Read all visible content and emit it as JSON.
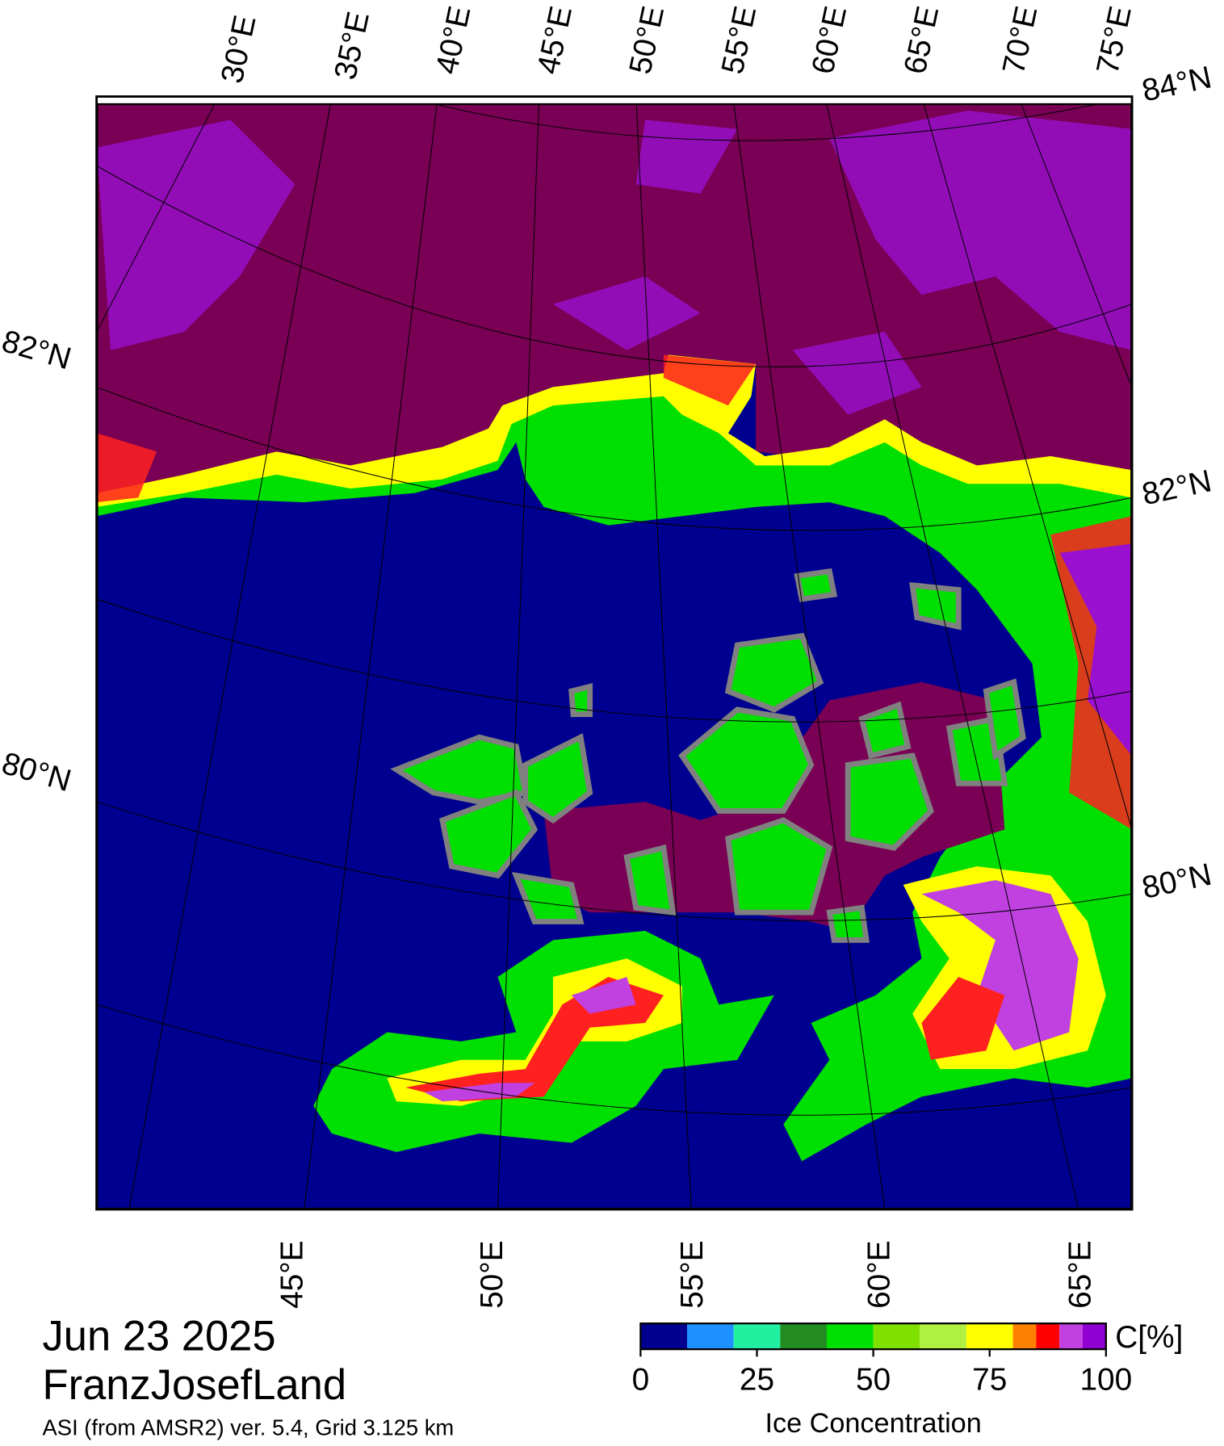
{
  "title": {
    "date": "Jun 23 2025",
    "region": "FranzJosefLand",
    "source": "ASI (from AMSR2) ver. 5.4,  Grid 3.125 km"
  },
  "map": {
    "top_lon_labels": [
      "30°E",
      "35°E",
      "40°E",
      "45°E",
      "50°E",
      "55°E",
      "60°E",
      "65°E",
      "70°E",
      "75°E"
    ],
    "bottom_lon_labels": [
      "45°E",
      "50°E",
      "55°E",
      "60°E",
      "65°E"
    ],
    "left_lat_labels": [
      "82°N",
      "80°N"
    ],
    "right_lat_labels": [
      "84°N",
      "82°N",
      "80°N"
    ]
  },
  "colorbar": {
    "bounds": [
      0,
      10,
      20,
      30,
      40,
      50,
      60,
      70,
      80,
      85,
      90,
      95,
      100
    ],
    "colors": [
      "#000090",
      "#1e90ff",
      "#20f0a0",
      "#228b22",
      "#00e000",
      "#80e000",
      "#b0f040",
      "#ffff00",
      "#ff8000",
      "#ff0000",
      "#c040e0",
      "#9000d0"
    ],
    "xlim": [
      0,
      100
    ],
    "ticks": [
      0,
      25,
      50,
      75,
      100
    ],
    "unit": "C[%]",
    "label": "Ice Concentration"
  }
}
